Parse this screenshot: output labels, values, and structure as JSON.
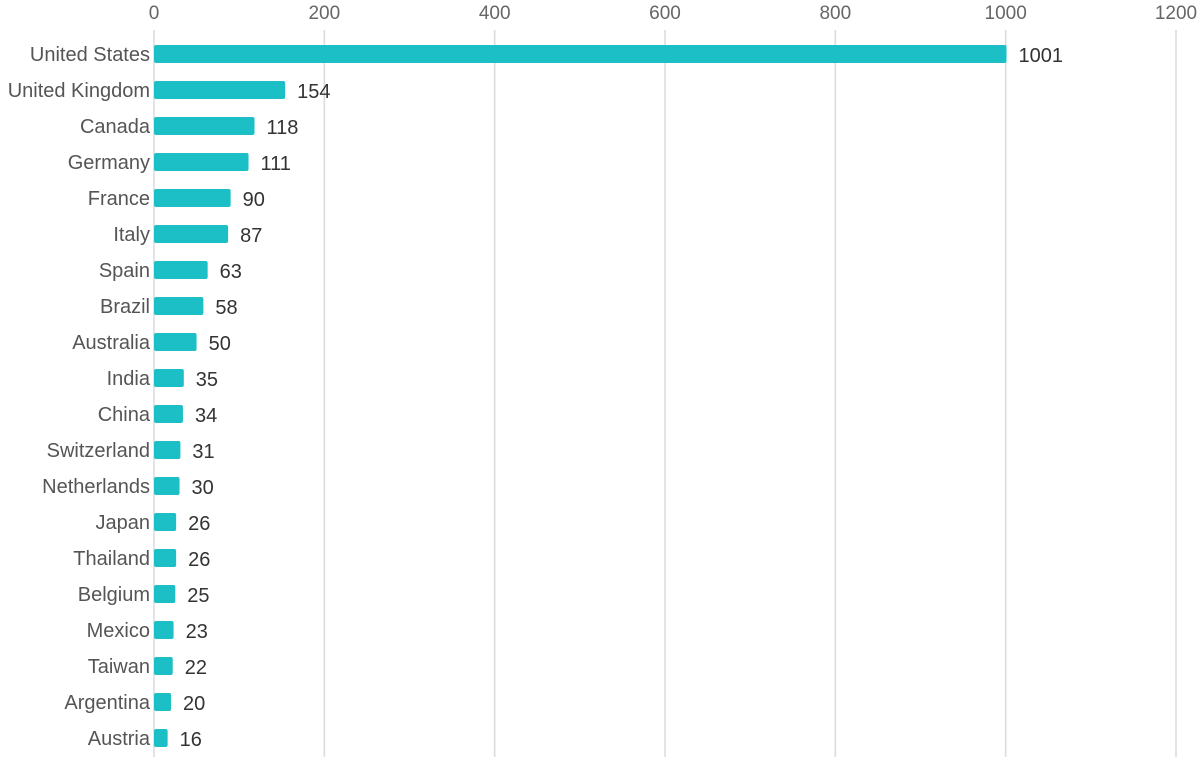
{
  "chart_data": {
    "type": "bar",
    "orientation": "horizontal",
    "categories": [
      "United States",
      "United Kingdom",
      "Canada",
      "Germany",
      "France",
      "Italy",
      "Spain",
      "Brazil",
      "Australia",
      "India",
      "China",
      "Switzerland",
      "Netherlands",
      "Japan",
      "Thailand",
      "Belgium",
      "Mexico",
      "Taiwan",
      "Argentina",
      "Austria"
    ],
    "values": [
      1001,
      154,
      118,
      111,
      90,
      87,
      63,
      58,
      50,
      35,
      34,
      31,
      30,
      26,
      26,
      25,
      23,
      22,
      20,
      16
    ],
    "xlim": [
      0,
      1200
    ],
    "xticks": [
      "0",
      "200",
      "400",
      "600",
      "800",
      "1000",
      "1200"
    ],
    "x_axis_position": "top",
    "grid": true,
    "legend": false,
    "data_labels": true,
    "title": "",
    "xlabel": "",
    "ylabel": "",
    "bar_color": "#1dbfc6"
  }
}
